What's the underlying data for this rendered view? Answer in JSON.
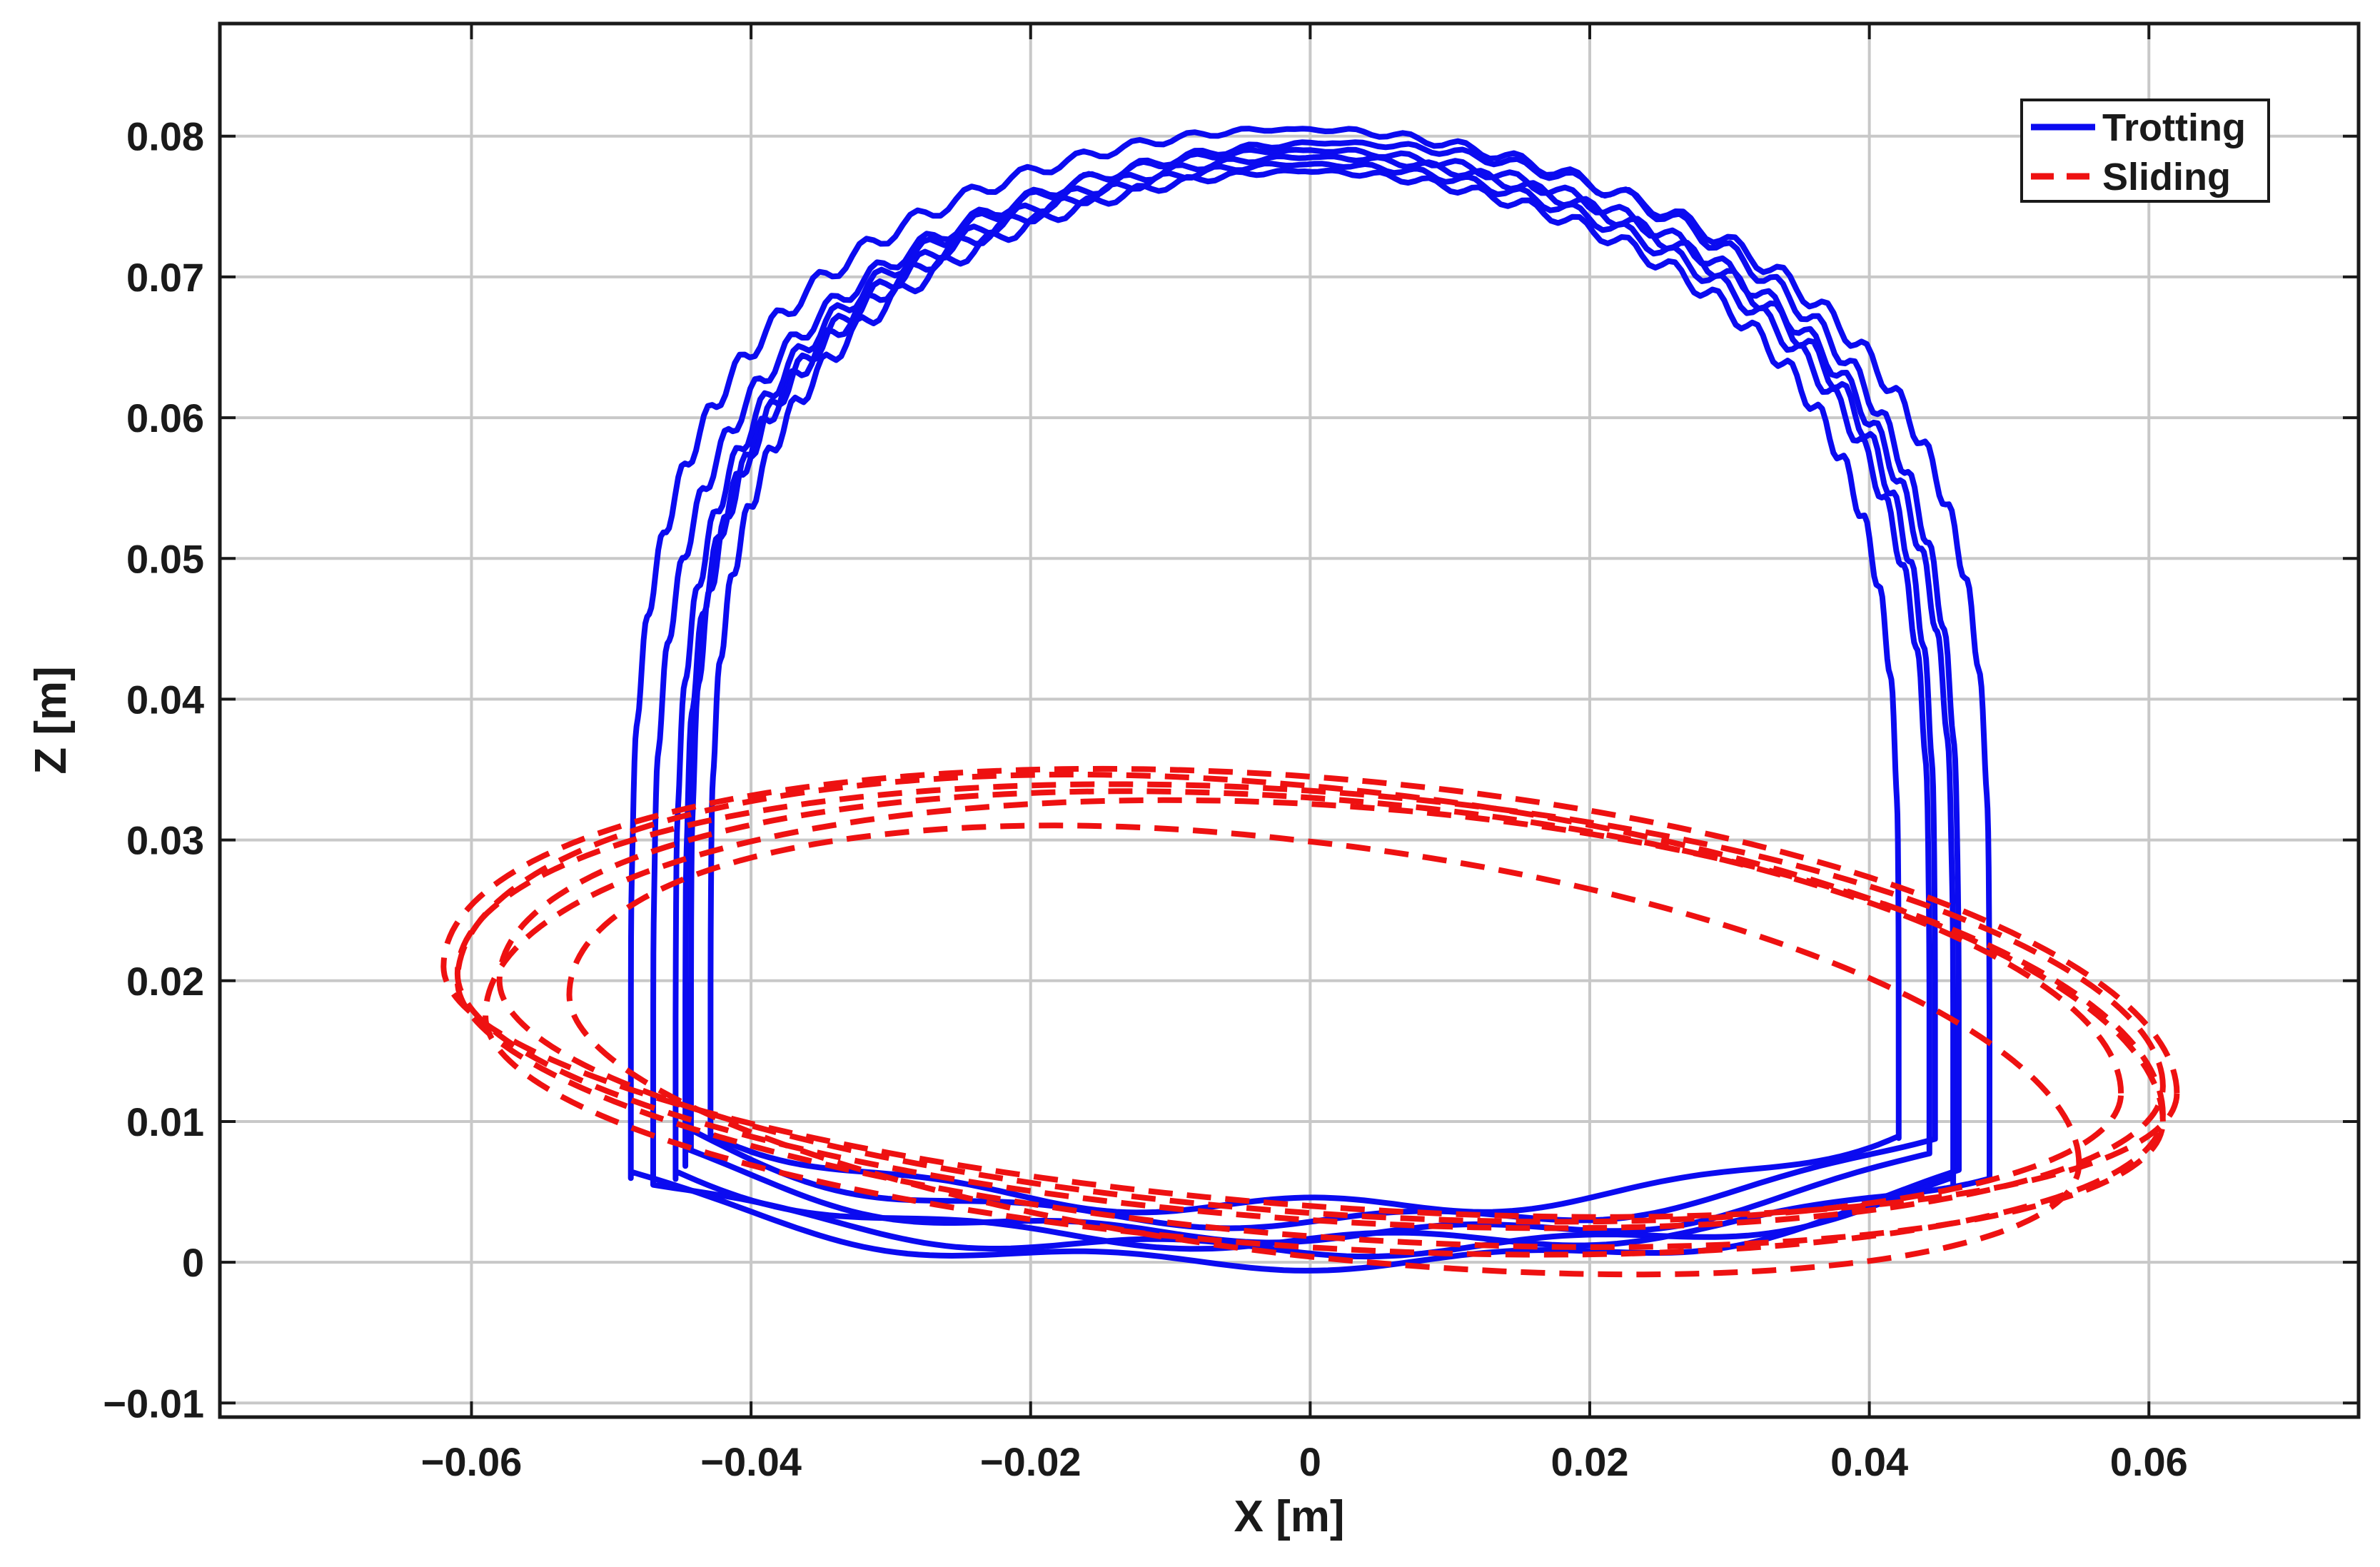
{
  "chart_data": {
    "type": "line",
    "xlabel": "X [m]",
    "ylabel": "Z [m]",
    "xlim": [
      -0.078,
      0.075
    ],
    "ylim": [
      -0.011,
      0.088
    ],
    "xticks": [
      -0.06,
      -0.04,
      -0.02,
      0,
      0.02,
      0.04,
      0.06
    ],
    "xtick_labels": [
      "−0.06",
      "−0.04",
      "−0.02",
      "0",
      "0.02",
      "0.04",
      "0.06"
    ],
    "yticks": [
      -0.01,
      0,
      0.01,
      0.02,
      0.03,
      0.04,
      0.05,
      0.06,
      0.07,
      0.08
    ],
    "ytick_labels": [
      "−0.01",
      "0",
      "0.01",
      "0.02",
      "0.03",
      "0.04",
      "0.05",
      "0.06",
      "0.07",
      "0.08"
    ],
    "grid": true,
    "legend_position": "top-right",
    "series": [
      {
        "name": "Trotting",
        "style": "solid",
        "color": "#0b0bf0",
        "cycles": [
          {
            "cx": 0.0,
            "top": 0.079,
            "left": -0.047,
            "right": 0.046,
            "bottom": 0.001,
            "foot": 0.0055,
            "wob": 0.0
          },
          {
            "cx": -0.002,
            "top": 0.0805,
            "left": -0.048,
            "right": 0.047,
            "bottom": 0.0,
            "foot": 0.006,
            "wob": 0.8
          },
          {
            "cx": 0.001,
            "top": 0.078,
            "left": -0.045,
            "right": 0.044,
            "bottom": 0.002,
            "foot": 0.0075,
            "wob": 1.6
          },
          {
            "cx": -0.001,
            "top": 0.0785,
            "left": -0.044,
            "right": 0.045,
            "bottom": 0.003,
            "foot": 0.009,
            "wob": 2.4
          },
          {
            "cx": 0.002,
            "top": 0.0795,
            "left": -0.046,
            "right": 0.048,
            "bottom": 0.0015,
            "foot": 0.0065,
            "wob": 3.2
          },
          {
            "cx": -0.003,
            "top": 0.0775,
            "left": -0.042,
            "right": 0.043,
            "bottom": 0.004,
            "foot": 0.0095,
            "wob": 4.0
          }
        ]
      },
      {
        "name": "Sliding",
        "style": "dashed",
        "color": "#ee1111",
        "cycles": [
          {
            "cx": 0.0,
            "rxl": 0.062,
            "rxr": 0.062,
            "top": 0.0345,
            "mid": 0.0165,
            "bottom": 0.004,
            "tilt": -0.0045
          },
          {
            "cx": 0.0,
            "rxl": 0.061,
            "rxr": 0.061,
            "top": 0.0335,
            "mid": 0.0165,
            "bottom": 0.003,
            "tilt": -0.004
          },
          {
            "cx": -0.002,
            "rxl": 0.059,
            "rxr": 0.063,
            "top": 0.034,
            "mid": 0.015,
            "bottom": 0.002,
            "tilt": -0.005
          },
          {
            "cx": 0.001,
            "rxl": 0.06,
            "rxr": 0.06,
            "top": 0.0325,
            "mid": 0.014,
            "bottom": 0.001,
            "tilt": -0.0035
          },
          {
            "cx": -0.001,
            "rxl": 0.052,
            "rxr": 0.056,
            "top": 0.03,
            "mid": 0.013,
            "bottom": 0.0005,
            "tilt": -0.006
          },
          {
            "cx": 0.0,
            "rxl": 0.058,
            "rxr": 0.058,
            "top": 0.033,
            "mid": 0.016,
            "bottom": 0.0035,
            "tilt": -0.004
          }
        ]
      }
    ]
  }
}
